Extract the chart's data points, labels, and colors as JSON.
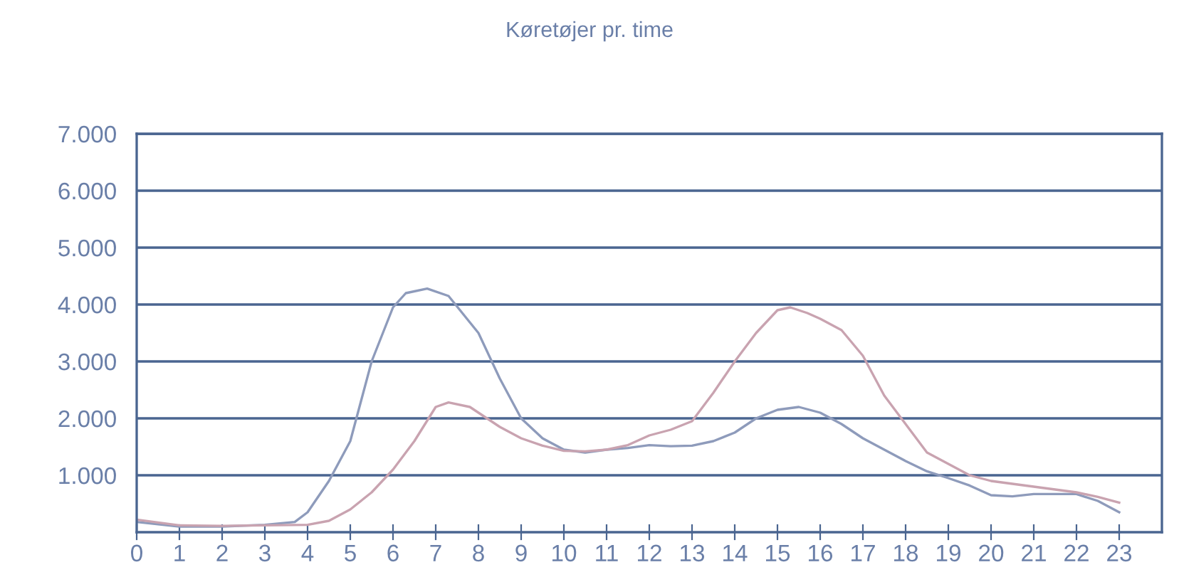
{
  "chart_data": {
    "type": "line",
    "title": "Køretøjer pr. time",
    "xlim": [
      0,
      24
    ],
    "xticks": [
      0,
      1,
      2,
      3,
      4,
      5,
      6,
      7,
      8,
      9,
      10,
      11,
      12,
      13,
      14,
      15,
      16,
      17,
      18,
      19,
      20,
      21,
      22,
      23
    ],
    "ylim": [
      0,
      7000
    ],
    "yticks": [
      {
        "value": 1000,
        "label": "1.000"
      },
      {
        "value": 2000,
        "label": "2.000"
      },
      {
        "value": 3000,
        "label": "3.000"
      },
      {
        "value": 4000,
        "label": "4.000"
      },
      {
        "value": 5000,
        "label": "5.000"
      },
      {
        "value": 6000,
        "label": "6.000"
      },
      {
        "value": 7000,
        "label": "7.000"
      }
    ],
    "grid": "y",
    "marker": "none",
    "line_style": "solid",
    "series": [
      {
        "color": "#8e9bbb",
        "x": [
          0,
          1,
          2,
          3,
          3.7,
          4,
          4.5,
          5,
          5.5,
          6,
          6.3,
          6.8,
          7.3,
          8,
          8.5,
          9,
          9.5,
          10,
          10.5,
          11,
          11.5,
          12,
          12.5,
          13,
          13.5,
          14,
          14.5,
          15,
          15.5,
          16,
          16.5,
          17,
          17.5,
          18,
          18.5,
          19,
          19.5,
          20,
          20.5,
          21,
          21.5,
          22,
          22.5,
          23
        ],
        "values": [
          180,
          100,
          100,
          130,
          180,
          350,
          900,
          1600,
          3000,
          3950,
          4200,
          4280,
          4150,
          3500,
          2700,
          2000,
          1650,
          1450,
          1400,
          1450,
          1480,
          1530,
          1510,
          1520,
          1600,
          1750,
          2000,
          2150,
          2200,
          2100,
          1900,
          1650,
          1450,
          1250,
          1070,
          950,
          820,
          650,
          630,
          670,
          670,
          670,
          550,
          350
        ]
      },
      {
        "color": "#c9a3b0",
        "x": [
          0,
          1,
          2,
          3,
          4,
          4.5,
          5,
          5.5,
          6,
          6.5,
          7,
          7.3,
          7.8,
          8,
          8.5,
          9,
          9.5,
          10,
          10.5,
          11,
          11.5,
          12,
          12.5,
          13,
          13.5,
          14,
          14.5,
          15,
          15.3,
          15.7,
          16,
          16.5,
          17,
          17.5,
          18,
          18.5,
          19,
          19.5,
          20,
          20.5,
          21,
          21.5,
          22,
          22.5,
          23
        ],
        "values": [
          220,
          120,
          110,
          120,
          130,
          200,
          400,
          700,
          1100,
          1600,
          2200,
          2280,
          2200,
          2100,
          1850,
          1650,
          1520,
          1430,
          1420,
          1450,
          1530,
          1700,
          1800,
          1950,
          2450,
          3000,
          3500,
          3900,
          3950,
          3850,
          3750,
          3550,
          3100,
          2400,
          1900,
          1400,
          1200,
          1000,
          900,
          850,
          800,
          750,
          700,
          620,
          520
        ]
      }
    ]
  }
}
